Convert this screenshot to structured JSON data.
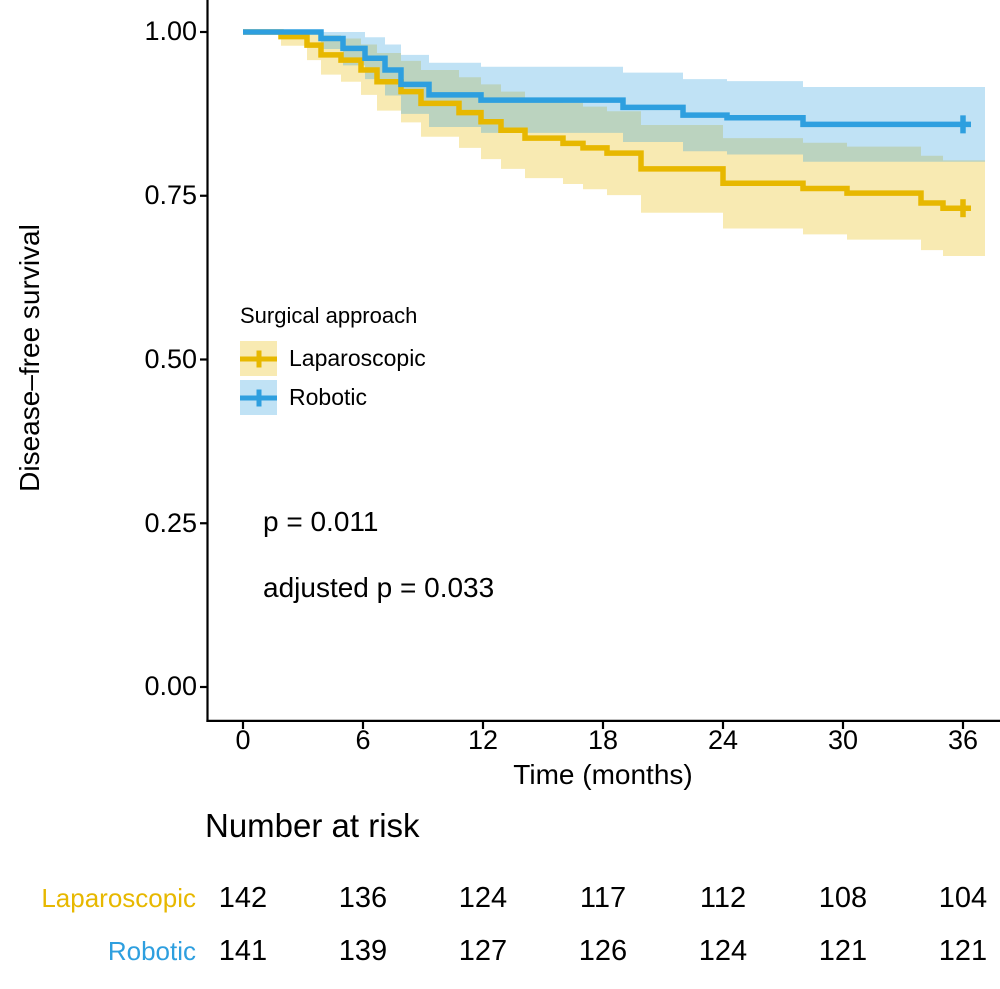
{
  "chart": {
    "y_axis": {
      "label": "Disease–free survival",
      "tick_labels": [
        "1.00",
        "0.75",
        "0.50",
        "0.25",
        "0.00"
      ]
    },
    "x_axis": {
      "label": "Time (months)",
      "tick_labels": [
        "0",
        "6",
        "12",
        "18",
        "24",
        "30",
        "36"
      ]
    },
    "legend": {
      "title": "Surgical approach",
      "items": [
        {
          "label": "Laparoscopic",
          "color": "#E7B800"
        },
        {
          "label": "Robotic",
          "color": "#2E9FDF"
        }
      ]
    },
    "annotations": {
      "p_value": "p = 0.011",
      "adjusted_p": "adjusted p = 0.033"
    }
  },
  "chart_data": {
    "type": "line",
    "subtype": "kaplan-meier-step-with-confidence-bands",
    "title": "",
    "xlabel": "Time (months)",
    "ylabel": "Disease–free survival",
    "xlim": [
      0,
      36
    ],
    "ylim": [
      0,
      1
    ],
    "x_ticks": [
      0,
      6,
      12,
      18,
      24,
      30,
      36
    ],
    "y_ticks": [
      1.0,
      0.75,
      0.5,
      0.25,
      0.0
    ],
    "grid": false,
    "legend_position": "inside-left-middle",
    "p_value": 0.011,
    "adjusted_p_value": 0.033,
    "series": [
      {
        "name": "Laparoscopic",
        "color": "#E7B800",
        "band_opacity": 0.3,
        "censor_at_end": true,
        "end_time": 36,
        "points_tslh": [
          [
            0.0,
            1.0,
            1.0,
            1.0
          ],
          [
            1.9,
            0.993,
            0.979,
            1.0
          ],
          [
            3.2,
            0.98,
            0.957,
            1.0
          ],
          [
            3.9,
            0.965,
            0.935,
            0.995
          ],
          [
            4.9,
            0.957,
            0.924,
            0.99
          ],
          [
            5.9,
            0.942,
            0.904,
            0.981
          ],
          [
            6.7,
            0.924,
            0.88,
            0.968
          ],
          [
            7.9,
            0.909,
            0.862,
            0.956
          ],
          [
            8.9,
            0.891,
            0.84,
            0.942
          ],
          [
            10.8,
            0.877,
            0.823,
            0.931
          ],
          [
            11.9,
            0.863,
            0.806,
            0.92
          ],
          [
            12.9,
            0.85,
            0.791,
            0.909
          ],
          [
            14.1,
            0.838,
            0.777,
            0.899
          ],
          [
            16.0,
            0.83,
            0.768,
            0.892
          ],
          [
            17.0,
            0.823,
            0.76,
            0.886
          ],
          [
            18.2,
            0.815,
            0.751,
            0.879
          ],
          [
            19.9,
            0.791,
            0.724,
            0.858
          ],
          [
            24.0,
            0.769,
            0.7,
            0.838
          ],
          [
            28.0,
            0.761,
            0.691,
            0.831
          ],
          [
            30.2,
            0.754,
            0.683,
            0.825
          ],
          [
            33.9,
            0.739,
            0.667,
            0.811
          ],
          [
            35.0,
            0.731,
            0.658,
            0.804
          ]
        ]
      },
      {
        "name": "Robotic",
        "color": "#2E9FDF",
        "band_opacity": 0.3,
        "censor_at_end": true,
        "end_time": 36,
        "points_tslh": [
          [
            0.0,
            1.0,
            1.0,
            1.0
          ],
          [
            3.9,
            0.99,
            0.974,
            1.0
          ],
          [
            5.0,
            0.975,
            0.949,
            1.0
          ],
          [
            6.1,
            0.96,
            0.928,
            0.992
          ],
          [
            7.1,
            0.942,
            0.903,
            0.981
          ],
          [
            7.9,
            0.92,
            0.875,
            0.965
          ],
          [
            9.3,
            0.904,
            0.855,
            0.953
          ],
          [
            11.9,
            0.896,
            0.846,
            0.947
          ],
          [
            19.0,
            0.885,
            0.832,
            0.938
          ],
          [
            22.0,
            0.873,
            0.818,
            0.928
          ],
          [
            24.2,
            0.869,
            0.813,
            0.925
          ],
          [
            28.0,
            0.859,
            0.802,
            0.916
          ]
        ]
      }
    ]
  },
  "risk_table": {
    "title": "Number at risk",
    "time_points": [
      "0",
      "6",
      "12",
      "18",
      "24",
      "30",
      "36"
    ],
    "rows": [
      {
        "label": "Laparoscopic",
        "color": "#E7B800",
        "counts": [
          "142",
          "136",
          "124",
          "117",
          "112",
          "108",
          "104"
        ]
      },
      {
        "label": "Robotic",
        "color": "#2E9FDF",
        "counts": [
          "141",
          "139",
          "127",
          "126",
          "124",
          "121",
          "121"
        ]
      }
    ]
  }
}
